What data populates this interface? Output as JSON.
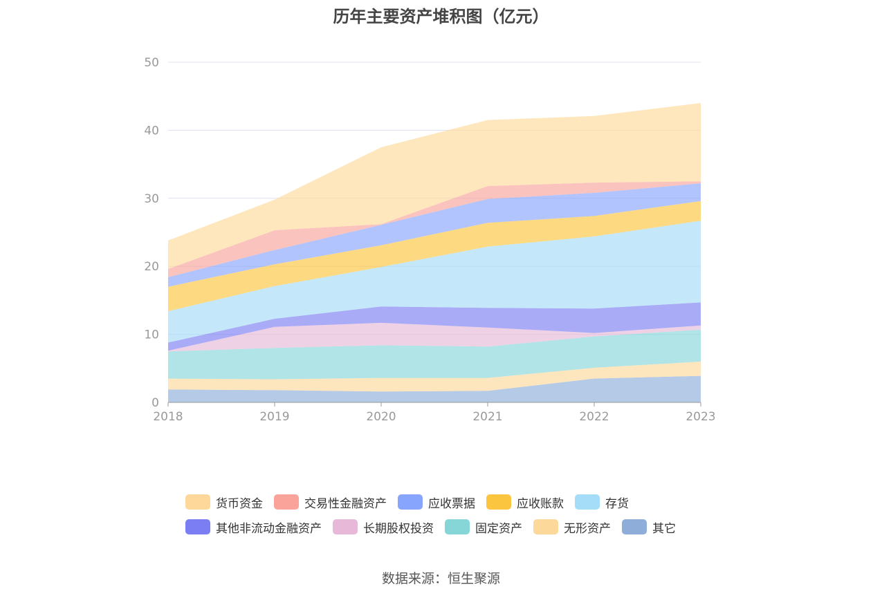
{
  "chart_data": {
    "type": "area",
    "stacked": true,
    "title": "历年主要资产堆积图（亿元）",
    "x": [
      "2018",
      "2019",
      "2020",
      "2021",
      "2022",
      "2023"
    ],
    "ylim": [
      0,
      50
    ],
    "yticks": [
      0,
      10,
      20,
      30,
      40,
      50
    ],
    "grid": true,
    "legend_position": "bottom",
    "series": [
      {
        "name": "其它",
        "color": "#8eaed9",
        "values": [
          1.9,
          1.8,
          1.6,
          1.7,
          3.5,
          3.9
        ]
      },
      {
        "name": "无形资产",
        "color": "#fcd89a",
        "values": [
          1.6,
          1.6,
          2.0,
          1.9,
          1.6,
          2.1
        ]
      },
      {
        "name": "固定资产",
        "color": "#86d6d8",
        "values": [
          4.0,
          4.6,
          4.8,
          4.6,
          4.6,
          4.7
        ]
      },
      {
        "name": "长期股权投资",
        "color": "#e7b8d7",
        "values": [
          0.1,
          3.1,
          3.3,
          2.8,
          0.5,
          0.6
        ]
      },
      {
        "name": "其他非流动金融资产",
        "color": "#7b7ef2",
        "values": [
          1.2,
          1.2,
          2.4,
          2.9,
          3.6,
          3.4
        ]
      },
      {
        "name": "存货",
        "color": "#a5dcf7",
        "values": [
          4.6,
          4.8,
          5.8,
          9.0,
          10.6,
          12.0
        ]
      },
      {
        "name": "应收账款",
        "color": "#fcc53f",
        "values": [
          3.6,
          3.2,
          3.2,
          3.5,
          3.0,
          2.9
        ]
      },
      {
        "name": "应收票据",
        "color": "#87a5fc",
        "values": [
          1.4,
          2.1,
          3.0,
          3.5,
          3.4,
          2.6
        ]
      },
      {
        "name": "交易性金融资产",
        "color": "#f9a39b",
        "values": [
          1.2,
          2.9,
          0.1,
          1.9,
          1.5,
          0.3
        ]
      },
      {
        "name": "货币资金",
        "color": "#fdd89a",
        "values": [
          4.2,
          4.5,
          11.3,
          9.7,
          9.8,
          11.5
        ]
      }
    ]
  },
  "legend_order": [
    "货币资金",
    "交易性金融资产",
    "应收票据",
    "应收账款",
    "存货",
    "其他非流动金融资产",
    "长期股权投资",
    "固定资产",
    "无形资产",
    "其它"
  ],
  "source": "数据来源：恒生聚源"
}
